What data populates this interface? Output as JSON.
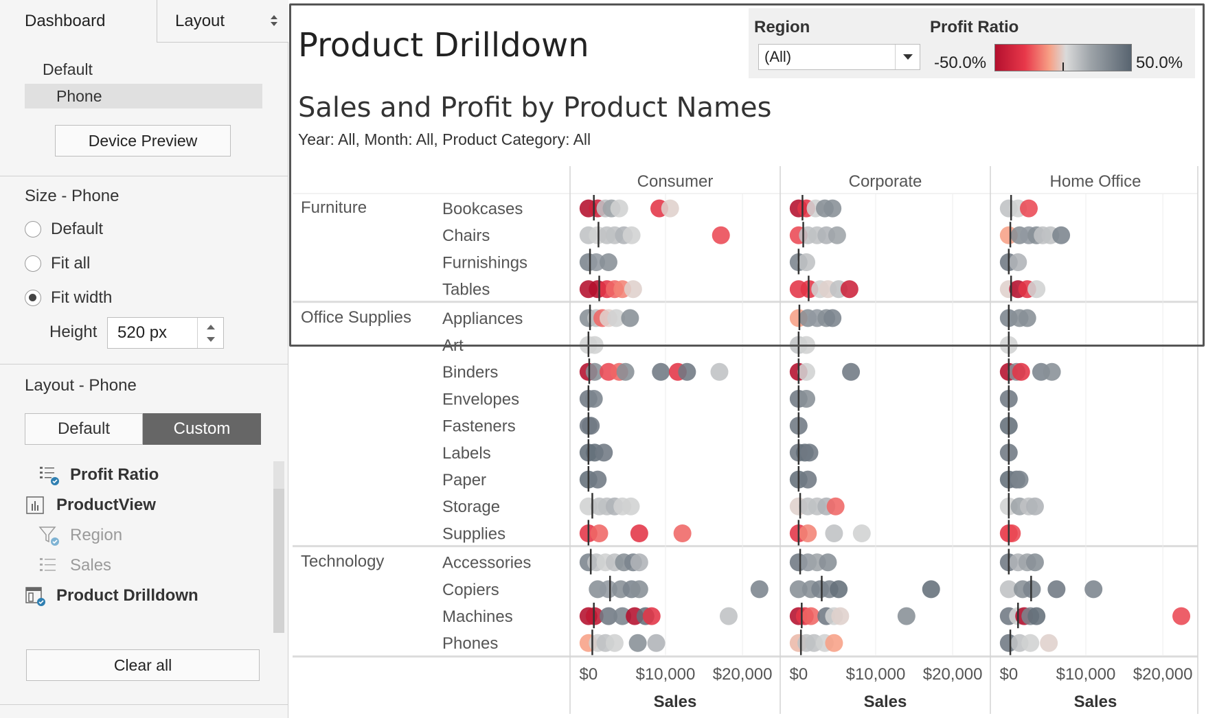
{
  "sidebar": {
    "tabs": [
      {
        "label": "Dashboard"
      },
      {
        "label": "Layout"
      }
    ],
    "devices": {
      "default_label": "Default",
      "phone_label": "Phone"
    },
    "device_preview_label": "Device Preview",
    "size": {
      "title": "Size - Phone",
      "options": [
        {
          "label": "Default",
          "selected": false
        },
        {
          "label": "Fit all",
          "selected": false
        },
        {
          "label": "Fit width",
          "selected": true
        }
      ],
      "height_label": "Height",
      "height_value": "520 px"
    },
    "layout": {
      "title": "Layout - Phone",
      "default_label": "Default",
      "custom_label": "Custom",
      "items": [
        {
          "label": "Profit Ratio",
          "icon": "legend-check-icon",
          "dim": false
        },
        {
          "label": "ProductView",
          "icon": "bar-chart-icon",
          "dim": false
        },
        {
          "label": "Region",
          "icon": "filter-check-icon",
          "dim": true
        },
        {
          "label": "Sales",
          "icon": "list-icon",
          "dim": true
        },
        {
          "label": "Product Drilldown",
          "icon": "dashboard-check-icon",
          "dim": false
        }
      ]
    },
    "clear_all_label": "Clear all"
  },
  "dashboard": {
    "title": "Product Drilldown",
    "region_filter": {
      "label": "Region",
      "value": "(All)"
    },
    "legend": {
      "label": "Profit Ratio",
      "min": "-50.0%",
      "max": "50.0%",
      "colors": [
        "#b4102e",
        "#e8384a",
        "#f7a086",
        "#dadada",
        "#9ea4a9",
        "#586470"
      ]
    },
    "subtitle": "Sales and Profit by Product Names",
    "filter_text": "Year: All, Month: All, Product Category: All"
  },
  "chart_data": {
    "type": "scatter",
    "segments": [
      "Consumer",
      "Corporate",
      "Home Office"
    ],
    "xlabel": "Sales",
    "x_ticks": [
      "$0",
      "$10,000",
      "$20,000"
    ],
    "xlim": [
      -1500,
      24000
    ],
    "categories": [
      {
        "name": "Furniture",
        "subcategories": [
          "Bookcases",
          "Chairs",
          "Furnishings",
          "Tables"
        ]
      },
      {
        "name": "Office Supplies",
        "subcategories": [
          "Appliances",
          "Art",
          "Binders",
          "Envelopes",
          "Fasteners",
          "Labels",
          "Paper",
          "Storage",
          "Supplies"
        ]
      },
      {
        "name": "Technology",
        "subcategories": [
          "Accessories",
          "Copiers",
          "Machines",
          "Phones"
        ]
      }
    ],
    "points": {
      "Consumer": {
        "Bookcases": [
          [
            0,
            -0.5
          ],
          [
            1200,
            -0.4
          ],
          [
            2200,
            0.1
          ],
          [
            3000,
            0.2
          ],
          [
            4000,
            0.05
          ],
          [
            9200,
            -0.3
          ],
          [
            10600,
            0.0
          ]
        ],
        "Chairs": [
          [
            0,
            0.1
          ],
          [
            1200,
            0.05
          ],
          [
            2400,
            0.1
          ],
          [
            3400,
            0.1
          ],
          [
            4600,
            0.15
          ],
          [
            5600,
            0.05
          ],
          [
            17200,
            -0.25
          ]
        ],
        "Furnishings": [
          [
            0,
            0.35
          ],
          [
            1000,
            0.25
          ],
          [
            2600,
            0.3
          ]
        ],
        "Tables": [
          [
            0,
            -0.5
          ],
          [
            1200,
            -0.5
          ],
          [
            2400,
            -0.3
          ],
          [
            3400,
            -0.2
          ],
          [
            4400,
            -0.15
          ],
          [
            5800,
            0.0
          ]
        ],
        "Appliances": [
          [
            0,
            0.3
          ],
          [
            1000,
            0.1
          ],
          [
            1800,
            -0.2
          ],
          [
            2600,
            0.0
          ],
          [
            3600,
            0.05
          ],
          [
            5400,
            0.3
          ]
        ],
        "Art": [
          [
            0,
            0.05
          ],
          [
            800,
            0.05
          ]
        ],
        "Binders": [
          [
            0,
            -0.5
          ],
          [
            800,
            0.3
          ],
          [
            2600,
            -0.25
          ],
          [
            4000,
            -0.2
          ],
          [
            4800,
            0.3
          ],
          [
            9400,
            0.4
          ],
          [
            11600,
            -0.3
          ],
          [
            12800,
            0.4
          ],
          [
            17000,
            0.1
          ]
        ],
        "Envelopes": [
          [
            0,
            0.4
          ],
          [
            700,
            0.35
          ]
        ],
        "Fasteners": [
          [
            0,
            0.4
          ],
          [
            300,
            0.4
          ]
        ],
        "Labels": [
          [
            0,
            0.45
          ],
          [
            800,
            0.45
          ],
          [
            2000,
            0.4
          ]
        ],
        "Paper": [
          [
            0,
            0.45
          ],
          [
            1200,
            0.4
          ]
        ],
        "Storage": [
          [
            0,
            0.05
          ],
          [
            1400,
            0.1
          ],
          [
            2400,
            0.1
          ],
          [
            3400,
            0.15
          ],
          [
            4400,
            0.05
          ],
          [
            5500,
            0.05
          ]
        ],
        "Supplies": [
          [
            0,
            -0.3
          ],
          [
            1400,
            -0.2
          ],
          [
            6600,
            -0.3
          ],
          [
            12200,
            -0.2
          ]
        ],
        "Accessories": [
          [
            0,
            0.35
          ],
          [
            1000,
            0.1
          ],
          [
            2200,
            0.05
          ],
          [
            3400,
            0.1
          ],
          [
            4600,
            0.3
          ],
          [
            5800,
            0.35
          ],
          [
            6600,
            0.15
          ]
        ],
        "Copiers": [
          [
            1200,
            0.3
          ],
          [
            2600,
            0.25
          ],
          [
            4200,
            0.3
          ],
          [
            5600,
            0.35
          ],
          [
            6600,
            0.3
          ],
          [
            22200,
            0.35
          ]
        ],
        "Machines": [
          [
            0,
            -0.5
          ],
          [
            800,
            -0.45
          ],
          [
            2600,
            0.4
          ],
          [
            4400,
            0.35
          ],
          [
            6000,
            -0.5
          ],
          [
            7400,
            0.45
          ],
          [
            8200,
            -0.3
          ],
          [
            18200,
            0.1
          ]
        ],
        "Phones": [
          [
            0,
            -0.1
          ],
          [
            1200,
            0.05
          ],
          [
            2200,
            0.1
          ],
          [
            3400,
            0.05
          ],
          [
            6400,
            0.3
          ],
          [
            8800,
            0.15
          ]
        ]
      },
      "Corporate": {
        "Bookcases": [
          [
            0,
            -0.5
          ],
          [
            1000,
            -0.3
          ],
          [
            2200,
            0.05
          ],
          [
            3400,
            0.3
          ],
          [
            4400,
            0.3
          ]
        ],
        "Chairs": [
          [
            0,
            -0.25
          ],
          [
            1200,
            0.1
          ],
          [
            2400,
            0.1
          ],
          [
            3600,
            0.15
          ],
          [
            5000,
            0.2
          ]
        ],
        "Furnishings": [
          [
            0,
            0.35
          ],
          [
            1000,
            0.1
          ]
        ],
        "Tables": [
          [
            0,
            -0.3
          ],
          [
            1400,
            -0.3
          ],
          [
            2800,
            0.05
          ],
          [
            3800,
            0.0
          ],
          [
            5200,
            0.1
          ],
          [
            6600,
            -0.4
          ]
        ],
        "Appliances": [
          [
            0,
            -0.1
          ],
          [
            1200,
            0.3
          ],
          [
            2400,
            0.25
          ],
          [
            3600,
            0.3
          ],
          [
            4400,
            0.35
          ]
        ],
        "Art": [
          [
            0,
            0.1
          ],
          [
            1000,
            0.05
          ]
        ],
        "Binders": [
          [
            0,
            -0.5
          ],
          [
            1000,
            0.05
          ],
          [
            6800,
            0.4
          ]
        ],
        "Envelopes": [
          [
            0,
            0.4
          ],
          [
            1000,
            0.3
          ]
        ],
        "Fasteners": [
          [
            0,
            0.4
          ]
        ],
        "Labels": [
          [
            0,
            0.4
          ],
          [
            800,
            0.45
          ],
          [
            1400,
            0.4
          ]
        ],
        "Paper": [
          [
            0,
            0.45
          ],
          [
            1200,
            0.4
          ]
        ],
        "Storage": [
          [
            0,
            0.0
          ],
          [
            1200,
            0.1
          ],
          [
            2400,
            0.1
          ],
          [
            3600,
            0.15
          ],
          [
            4800,
            -0.2
          ]
        ],
        "Supplies": [
          [
            0,
            -0.3
          ],
          [
            1200,
            -0.15
          ],
          [
            4600,
            0.1
          ],
          [
            8200,
            0.05
          ]
        ],
        "Accessories": [
          [
            0,
            0.4
          ],
          [
            1200,
            0.25
          ],
          [
            2400,
            0.2
          ],
          [
            3800,
            0.3
          ]
        ],
        "Copiers": [
          [
            0,
            0.3
          ],
          [
            1600,
            0.3
          ],
          [
            2800,
            0.35
          ],
          [
            4000,
            0.35
          ],
          [
            5200,
            0.45
          ],
          [
            17200,
            0.45
          ]
        ],
        "Machines": [
          [
            0,
            -0.5
          ],
          [
            800,
            -0.3
          ],
          [
            1600,
            -0.2
          ],
          [
            3600,
            0.4
          ],
          [
            4600,
            0.05
          ],
          [
            5400,
            0.0
          ],
          [
            14000,
            0.3
          ]
        ],
        "Phones": [
          [
            0,
            -0.05
          ],
          [
            1000,
            0.1
          ],
          [
            2000,
            0.1
          ],
          [
            3400,
            0.05
          ],
          [
            4600,
            -0.1
          ]
        ]
      },
      "Home Office": {
        "Bookcases": [
          [
            0,
            0.1
          ],
          [
            1200,
            0.05
          ],
          [
            2600,
            -0.25
          ]
        ],
        "Chairs": [
          [
            0,
            -0.1
          ],
          [
            1400,
            0.3
          ],
          [
            2600,
            0.25
          ],
          [
            3600,
            0.3
          ],
          [
            4400,
            0.1
          ],
          [
            5400,
            0.1
          ],
          [
            6800,
            0.35
          ]
        ],
        "Furnishings": [
          [
            0,
            0.4
          ],
          [
            1200,
            0.15
          ]
        ],
        "Tables": [
          [
            0,
            0.0
          ],
          [
            1200,
            -0.5
          ],
          [
            2400,
            -0.3
          ],
          [
            3600,
            0.05
          ]
        ],
        "Appliances": [
          [
            0,
            0.35
          ],
          [
            1400,
            0.3
          ],
          [
            2400,
            0.3
          ]
        ],
        "Art": [
          [
            0,
            0.05
          ]
        ],
        "Binders": [
          [
            0,
            -0.5
          ],
          [
            1000,
            0.3
          ],
          [
            1600,
            -0.3
          ],
          [
            4200,
            0.35
          ],
          [
            5600,
            0.3
          ]
        ],
        "Envelopes": [
          [
            0,
            0.4
          ]
        ],
        "Fasteners": [
          [
            0,
            0.45
          ]
        ],
        "Labels": [
          [
            0,
            0.4
          ]
        ],
        "Paper": [
          [
            0,
            0.45
          ],
          [
            1000,
            0.4
          ],
          [
            1400,
            0.35
          ]
        ],
        "Storage": [
          [
            0,
            0.05
          ],
          [
            1400,
            0.2
          ],
          [
            2600,
            0.1
          ],
          [
            3400,
            0.15
          ]
        ],
        "Supplies": [
          [
            0,
            -0.3
          ],
          [
            400,
            -0.25
          ]
        ],
        "Accessories": [
          [
            0,
            0.4
          ],
          [
            1200,
            0.15
          ],
          [
            2400,
            0.2
          ],
          [
            3400,
            0.3
          ]
        ],
        "Copiers": [
          [
            0,
            0.1
          ],
          [
            1800,
            0.3
          ],
          [
            3000,
            0.35
          ],
          [
            6200,
            0.4
          ],
          [
            11000,
            0.35
          ]
        ],
        "Machines": [
          [
            0,
            0.4
          ],
          [
            1200,
            0.05
          ],
          [
            2000,
            -0.5
          ],
          [
            2800,
            0.35
          ],
          [
            3600,
            0.45
          ],
          [
            22400,
            -0.25
          ]
        ],
        "Phones": [
          [
            0,
            0.4
          ],
          [
            1400,
            0.1
          ],
          [
            2800,
            0.05
          ],
          [
            5200,
            0.0
          ]
        ]
      }
    },
    "reference_lines": {
      "Consumer": {
        "Bookcases": 700,
        "Chairs": 1300,
        "Furnishings": 200,
        "Tables": 1400,
        "Appliances": 200,
        "Art": 0,
        "Binders": 100,
        "Envelopes": 0,
        "Fasteners": 0,
        "Labels": 0,
        "Paper": 0,
        "Storage": 500,
        "Supplies": 0,
        "Accessories": 300,
        "Copiers": 2800,
        "Machines": 700,
        "Phones": 500
      },
      "Corporate": {
        "Bookcases": 500,
        "Chairs": 600,
        "Furnishings": 0,
        "Tables": 1300,
        "Appliances": 100,
        "Art": 0,
        "Binders": 0,
        "Envelopes": 0,
        "Fasteners": 0,
        "Labels": 0,
        "Paper": 0,
        "Storage": 200,
        "Supplies": 0,
        "Accessories": 200,
        "Copiers": 3000,
        "Machines": 400,
        "Phones": 300
      },
      "Home Office": {
        "Bookcases": 300,
        "Chairs": 200,
        "Furnishings": 0,
        "Tables": 300,
        "Appliances": 0,
        "Art": 0,
        "Binders": 0,
        "Envelopes": 0,
        "Fasteners": 0,
        "Labels": 0,
        "Paper": 0,
        "Storage": 0,
        "Supplies": 0,
        "Accessories": 0,
        "Copiers": 2900,
        "Machines": 1200,
        "Phones": 200
      }
    }
  }
}
